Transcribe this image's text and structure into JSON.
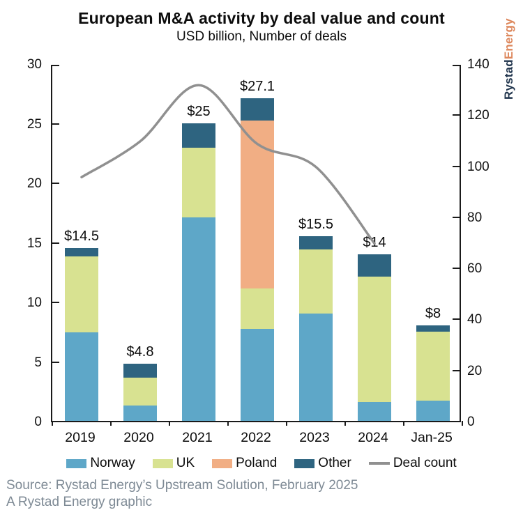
{
  "page": {
    "title": "European M&A activity by deal value and count",
    "subtitle": "USD billion, Number of deals"
  },
  "logo": {
    "rystad": "Rystad",
    "energy": "Energy"
  },
  "footer": {
    "line1": "Source: Rystad Energy’s Upstream Solution, February 2025",
    "line2": "A Rystad Energy graphic"
  },
  "chart_data": {
    "type": "bar",
    "stacked": true,
    "title": "European M&A activity by deal value and count",
    "subtitle": "USD billion, Number of deals",
    "categories": [
      "2019",
      "2020",
      "2021",
      "2022",
      "2023",
      "2024",
      "Jan-25"
    ],
    "series": [
      {
        "name": "Norway",
        "color": "#5ea7c8",
        "values": [
          7.4,
          1.3,
          17.1,
          7.7,
          9.0,
          1.6,
          1.7
        ]
      },
      {
        "name": "UK",
        "color": "#d8e291",
        "values": [
          6.4,
          2.3,
          5.8,
          3.4,
          5.4,
          10.5,
          5.8
        ]
      },
      {
        "name": "Poland",
        "color": "#f1ae84",
        "values": [
          0,
          0,
          0,
          14.1,
          0,
          0,
          0
        ]
      },
      {
        "name": "Other",
        "color": "#2e6480",
        "values": [
          0.7,
          1.2,
          2.1,
          1.9,
          1.1,
          1.9,
          0.5
        ]
      }
    ],
    "bar_totals": [
      14.5,
      4.8,
      25,
      27.1,
      15.5,
      14,
      8
    ],
    "bar_total_labels": [
      "$14.5",
      "$4.8",
      "$25",
      "$27.1",
      "$15.5",
      "$14",
      "$8"
    ],
    "line_series": {
      "name": "Deal count",
      "color": "#909090",
      "axis": "right",
      "values": [
        96,
        110,
        132,
        109,
        100,
        70,
        null
      ]
    },
    "left_axis": {
      "range": [
        0,
        30
      ],
      "ticks": [
        0,
        5,
        10,
        15,
        20,
        25,
        30
      ]
    },
    "right_axis": {
      "range": [
        0,
        140
      ],
      "ticks": [
        0,
        20,
        40,
        60,
        80,
        100,
        120,
        140
      ]
    },
    "grid": false,
    "legend_position": "bottom"
  }
}
